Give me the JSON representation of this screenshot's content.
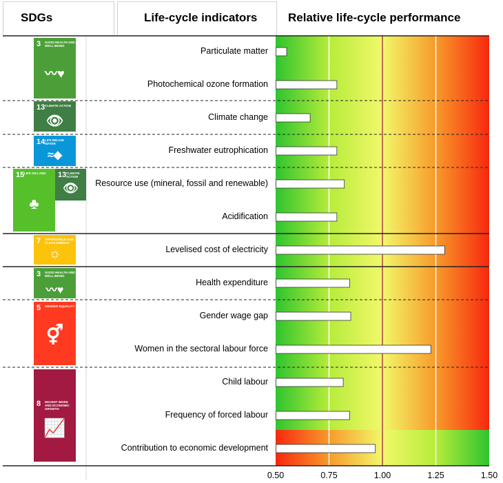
{
  "headers": {
    "sdgs": "SDGs",
    "indicators": "Life-cycle indicators",
    "performance": "Relative life-cycle performance"
  },
  "sdg_badges": [
    {
      "number": "3",
      "text": "GOOD HEALTH AND WELL-BEING",
      "color": "#4c9f38",
      "icon": "heartbeat-icon"
    },
    {
      "number": "13",
      "text": "CLIMATE ACTION",
      "color": "#3f7e44",
      "icon": "eye-globe-icon"
    },
    {
      "number": "14",
      "text": "LIFE BELOW WATER",
      "color": "#0a97d9",
      "icon": "fish-icon"
    },
    {
      "number": "15",
      "text": "LIFE ON LAND",
      "color": "#56c02b",
      "icon": "tree-icon"
    },
    {
      "number": "13",
      "text": "CLIMATE ACTION",
      "color": "#3f7e44",
      "icon": "eye-globe-icon"
    },
    {
      "number": "7",
      "text": "AFFORDABLE AND CLEAN ENERGY",
      "color": "#fcc30b",
      "icon": "sun-icon"
    },
    {
      "number": "3",
      "text": "GOOD HEALTH AND WELL-BEING",
      "color": "#4c9f38",
      "icon": "heartbeat-icon"
    },
    {
      "number": "5",
      "text": "GENDER EQUALITY",
      "color": "#ff3a21",
      "icon": "gender-icon"
    },
    {
      "number": "8",
      "text": "DECENT WORK AND ECONOMIC GROWTH",
      "color": "#a21942",
      "icon": "growth-chart-icon"
    }
  ],
  "chart_data": {
    "type": "bar",
    "orientation": "horizontal",
    "categories": [
      "Particulate matter",
      "Photochemical ozone formation",
      "Climate change",
      "Freshwater eutrophication",
      "Resource use (mineral, fossil and renewable)",
      "Acidification",
      "Levelised cost of electricity",
      "Health expenditure",
      "Gender wage gap",
      "Women in the sectoral labour force",
      "Child labour",
      "Frequency of forced labour",
      "Contribution to economic development"
    ],
    "values": [
      0.55,
      0.785,
      0.66,
      0.785,
      0.82,
      0.785,
      1.29,
      0.845,
      0.85,
      1.225,
      0.815,
      0.845,
      0.965
    ],
    "xlim": [
      0.5,
      1.5
    ],
    "xticks": [
      "0.50",
      "0.75",
      "1.00",
      "1.25",
      "1.50"
    ],
    "reference_line": 1.0,
    "white_gridlines": [
      0.75,
      1.25
    ],
    "background": "green-to-red gradient (lower is better); reversed red-to-green for last row",
    "bar_color": "#ffffff",
    "reference_color": "#a0204a"
  }
}
